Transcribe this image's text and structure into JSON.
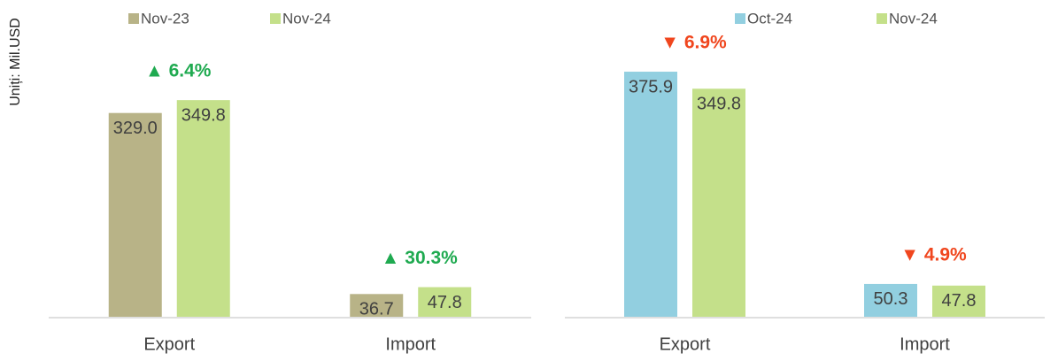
{
  "chart_data": [
    {
      "type": "bar",
      "ylabel": "Uniți: Mil.USD",
      "categories": [
        "Export",
        "Import"
      ],
      "series": [
        {
          "name": "Nov-23",
          "color": "#b8b387",
          "values": [
            329.0,
            36.7
          ],
          "value_labels": [
            "329.0",
            "36.7"
          ]
        },
        {
          "name": "Nov-24",
          "color": "#c4e08a",
          "values": [
            349.8,
            47.8
          ],
          "value_labels": [
            "349.8",
            "47.8"
          ]
        }
      ],
      "annotations": [
        "▲ 6.4%",
        "▲ 30.3%"
      ],
      "annotation_color": "#1faa50",
      "ylim": [
        0,
        500
      ]
    },
    {
      "type": "bar",
      "categories": [
        "Export",
        "Import"
      ],
      "series": [
        {
          "name": "Oct-24",
          "color": "#92cfe0",
          "values": [
            375.9,
            50.3
          ],
          "value_labels": [
            "375.9",
            "50.3"
          ]
        },
        {
          "name": "Nov-24",
          "color": "#c4e08a",
          "values": [
            349.8,
            47.8
          ],
          "value_labels": [
            "349.8",
            "47.8"
          ]
        }
      ],
      "annotations": [
        "▼ 6.9%",
        "▼ 4.9%"
      ],
      "annotation_color": "#f0461e",
      "ylim": [
        0,
        475
      ]
    }
  ]
}
